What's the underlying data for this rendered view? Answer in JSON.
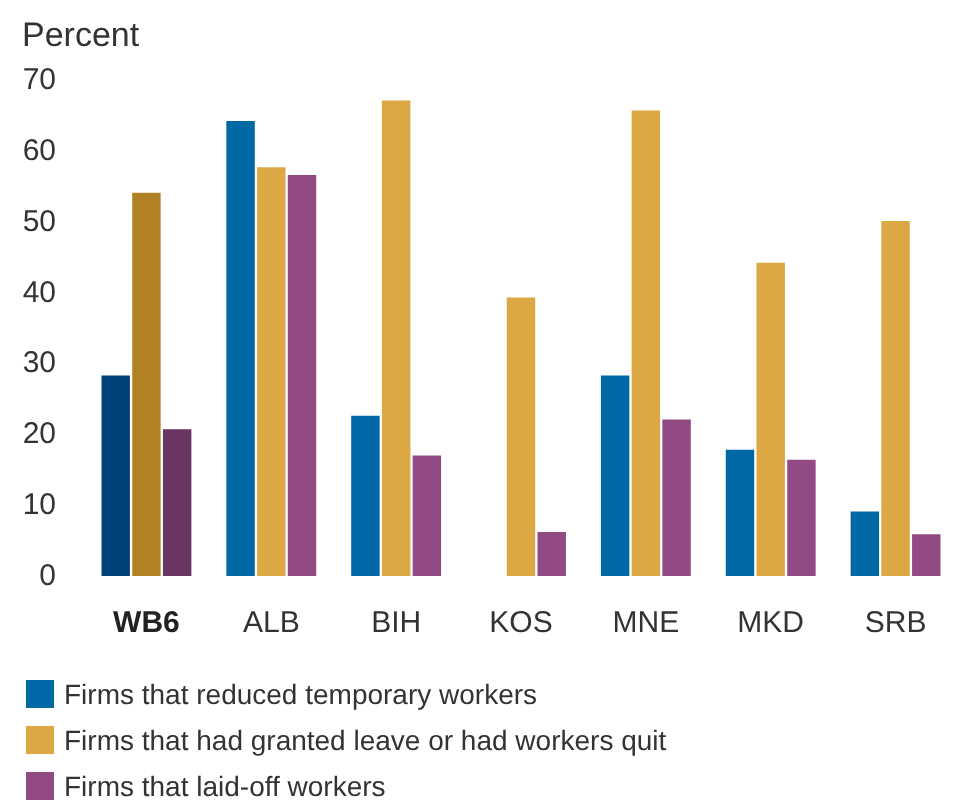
{
  "chart_data": {
    "type": "bar",
    "ylabel": "Percent",
    "categories": [
      "WB6",
      "ALB",
      "BIH",
      "KOS",
      "MNE",
      "MKD",
      "SRB"
    ],
    "series": [
      {
        "name": "Firms that reduced temporary workers",
        "color": "#0068a5",
        "colors": [
          "#004378",
          "#0068a5",
          "#0068a5",
          "#0068a5",
          "#0068a5",
          "#0068a5",
          "#0068a5"
        ],
        "values": [
          28.3,
          64.2,
          22.6,
          null,
          28.3,
          17.8,
          9.1
        ]
      },
      {
        "name": "Firms that had granted leave or had workers quit",
        "color": "#dba843",
        "colors": [
          "#b08224",
          "#dba843",
          "#dba843",
          "#dba843",
          "#dba843",
          "#dba843",
          "#dba843"
        ],
        "values": [
          54.1,
          57.7,
          67.1,
          39.3,
          65.7,
          44.2,
          50.1
        ]
      },
      {
        "name": "Firms that laid-off workers",
        "color": "#924a84",
        "colors": [
          "#6b3563",
          "#924a84",
          "#924a84",
          "#924a84",
          "#924a84",
          "#924a84",
          "#924a84"
        ],
        "values": [
          20.7,
          56.6,
          17.0,
          6.2,
          22.1,
          16.4,
          5.9
        ]
      }
    ],
    "ylim": [
      0,
      70
    ],
    "yticks": [
      0,
      10,
      20,
      30,
      40,
      50,
      60,
      70
    ],
    "grid": false,
    "legend": "bottom"
  }
}
